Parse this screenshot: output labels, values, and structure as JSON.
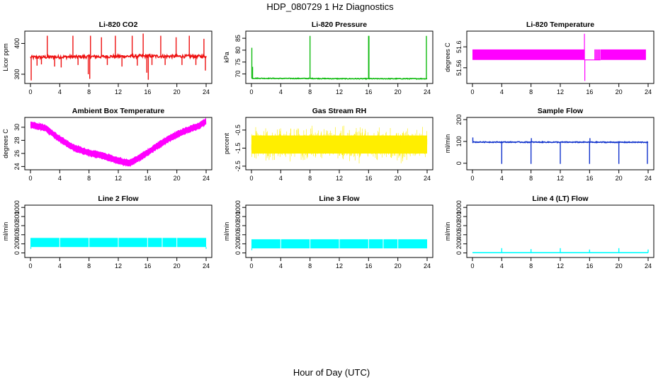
{
  "main_title": "HDP_080729  1 Hz Diagnostics",
  "x_axis_label": "Hour of Day (UTC)",
  "chart_data": [
    {
      "type": "line",
      "title": "Li-820 CO2",
      "ylabel": "Licor ppm",
      "color": "#ee1111",
      "xlim": [
        0,
        24
      ],
      "xticks": [
        0,
        4,
        8,
        12,
        16,
        20,
        24
      ],
      "ylim": [
        270,
        440
      ],
      "yticks": [
        300,
        400
      ],
      "baseline": [
        [
          0,
          355
        ],
        [
          4,
          356
        ],
        [
          8,
          357
        ],
        [
          12,
          358
        ],
        [
          16,
          359
        ],
        [
          20,
          358
        ],
        [
          24,
          358
        ]
      ],
      "noise": 5,
      "spikes": [
        {
          "x": 0.1,
          "y": 280
        },
        {
          "x": 0.9,
          "y": 328
        },
        {
          "x": 1.5,
          "y": 332
        },
        {
          "x": 2.3,
          "y": 425
        },
        {
          "x": 3.3,
          "y": 325
        },
        {
          "x": 4.2,
          "y": 322
        },
        {
          "x": 5.8,
          "y": 425
        },
        {
          "x": 6.5,
          "y": 330
        },
        {
          "x": 7.9,
          "y": 300
        },
        {
          "x": 8.2,
          "y": 425
        },
        {
          "x": 8.1,
          "y": 285
        },
        {
          "x": 9.7,
          "y": 420
        },
        {
          "x": 10.5,
          "y": 330
        },
        {
          "x": 11.6,
          "y": 425
        },
        {
          "x": 12.5,
          "y": 325
        },
        {
          "x": 13.9,
          "y": 425
        },
        {
          "x": 14.6,
          "y": 328
        },
        {
          "x": 15.4,
          "y": 432
        },
        {
          "x": 15.9,
          "y": 305
        },
        {
          "x": 16.1,
          "y": 282
        },
        {
          "x": 16.6,
          "y": 330
        },
        {
          "x": 17.8,
          "y": 425
        },
        {
          "x": 18.4,
          "y": 330
        },
        {
          "x": 19.9,
          "y": 420
        },
        {
          "x": 20.7,
          "y": 330
        },
        {
          "x": 21.7,
          "y": 425
        },
        {
          "x": 22.6,
          "y": 330
        },
        {
          "x": 23.7,
          "y": 415
        },
        {
          "x": 23.9,
          "y": 312
        }
      ]
    },
    {
      "type": "line",
      "title": "Li-820 Pressure",
      "ylabel": "kPa",
      "color": "#11bb11",
      "xlim": [
        0,
        24
      ],
      "xticks": [
        0,
        4,
        8,
        12,
        16,
        20,
        24
      ],
      "ylim": [
        66,
        88
      ],
      "yticks": [
        70,
        75,
        80,
        85
      ],
      "baseline": [
        [
          0,
          68.2
        ],
        [
          4,
          68.1
        ],
        [
          8,
          68.1
        ],
        [
          12,
          68.0
        ],
        [
          16,
          68.0
        ],
        [
          20,
          68.0
        ],
        [
          24,
          68.0
        ]
      ],
      "noise": 0.15,
      "spikes": [
        {
          "x": 0.05,
          "y": 81
        },
        {
          "x": 0.15,
          "y": 73
        },
        {
          "x": 8.0,
          "y": 86
        },
        {
          "x": 16.0,
          "y": 86
        },
        {
          "x": 16.05,
          "y": 86
        },
        {
          "x": 23.9,
          "y": 86
        }
      ]
    },
    {
      "type": "band",
      "title": "Li-820 Temperature",
      "ylabel": "degrees C",
      "color": "#ff00ff",
      "xlim": [
        0,
        24
      ],
      "xticks": [
        0,
        4,
        8,
        12,
        16,
        20,
        24
      ],
      "ylim": [
        51.53,
        51.63
      ],
      "yticks": [
        51.56,
        51.6
      ],
      "segments": [
        {
          "x0": 0,
          "x1": 15.3,
          "low": 51.575,
          "high": 51.595
        },
        {
          "x0": 17.5,
          "x1": 23.7,
          "low": 51.575,
          "high": 51.595
        }
      ],
      "sparse_segments": [
        {
          "x0": 16.7,
          "x1": 17.5,
          "low": 51.575,
          "high": 51.595
        }
      ],
      "flat": [
        {
          "x0": 15.3,
          "x1": 17.5,
          "y": 51.575
        }
      ],
      "spikes": [
        {
          "x": 15.3,
          "y": 51.625
        },
        {
          "x": 15.35,
          "y": 51.535
        }
      ]
    },
    {
      "type": "band",
      "title": "Ambient Box Temperature",
      "ylabel": "degrees C",
      "color": "#ff00ff",
      "xlim": [
        0,
        24
      ],
      "xticks": [
        0,
        4,
        8,
        12,
        16,
        20,
        24
      ],
      "ylim": [
        23.5,
        31.5
      ],
      "yticks": [
        24,
        26,
        28,
        30
      ],
      "center": [
        [
          0,
          30.4
        ],
        [
          2,
          29.9
        ],
        [
          4,
          28.2
        ],
        [
          6,
          26.8
        ],
        [
          8,
          26.1
        ],
        [
          10,
          25.6
        ],
        [
          12,
          24.9
        ],
        [
          13.5,
          24.5
        ],
        [
          15,
          25.4
        ],
        [
          17,
          26.9
        ],
        [
          19,
          28.3
        ],
        [
          21,
          29.4
        ],
        [
          23,
          30.2
        ],
        [
          24,
          30.9
        ]
      ],
      "half_width": 0.5
    },
    {
      "type": "noise",
      "title": "Gas Stream RH",
      "ylabel": "percent",
      "color": "#ffee00",
      "xlim": [
        0,
        24
      ],
      "xticks": [
        0,
        4,
        8,
        12,
        16,
        20,
        24
      ],
      "ylim": [
        -2.7,
        0.2
      ],
      "yticks": [
        -2.5,
        -1.5,
        -0.5
      ],
      "center": -1.3,
      "core": 0.5,
      "spread": 1.2
    },
    {
      "type": "line",
      "title": "Sample Flow",
      "ylabel": "ml/min",
      "color": "#1133cc",
      "xlim": [
        0,
        24
      ],
      "xticks": [
        0,
        4,
        8,
        12,
        16,
        20,
        24
      ],
      "ylim": [
        -30,
        210
      ],
      "yticks": [
        0,
        100,
        200
      ],
      "baseline": [
        [
          0,
          97
        ],
        [
          24,
          96
        ]
      ],
      "noise": 2,
      "spikes": [
        {
          "x": 0.05,
          "y": 118
        },
        {
          "x": 4.0,
          "y": -3
        },
        {
          "x": 8.0,
          "y": -3
        },
        {
          "x": 8.05,
          "y": 115
        },
        {
          "x": 12.0,
          "y": -3
        },
        {
          "x": 16.0,
          "y": -3
        },
        {
          "x": 16.05,
          "y": 115
        },
        {
          "x": 20.0,
          "y": -3
        },
        {
          "x": 23.9,
          "y": -3
        }
      ]
    },
    {
      "type": "band",
      "title": "Line 2 Flow",
      "ylabel": "ml/min",
      "color": "#00ffff",
      "xlim": [
        0,
        24
      ],
      "xticks": [
        0,
        4,
        8,
        12,
        16,
        20,
        24
      ],
      "ylim": [
        -100,
        1050
      ],
      "yticks": [
        0,
        200,
        400,
        600,
        800,
        1000
      ],
      "segments": [
        {
          "x0": 0,
          "x1": 24,
          "low": 130,
          "high": 330
        }
      ],
      "gaps": [
        4.0,
        8.0,
        12.0,
        16.0,
        18.0,
        20.0
      ],
      "spikes": [
        {
          "x": 0.05,
          "y": 90
        },
        {
          "x": 24,
          "y": 90
        }
      ]
    },
    {
      "type": "band",
      "title": "Line 3 Flow",
      "ylabel": "ml/min",
      "color": "#00ffff",
      "xlim": [
        0,
        24
      ],
      "xticks": [
        0,
        4,
        8,
        12,
        16,
        20,
        24
      ],
      "ylim": [
        -100,
        1050
      ],
      "yticks": [
        0,
        200,
        400,
        600,
        800,
        1000
      ],
      "segments": [
        {
          "x0": 0,
          "x1": 24,
          "low": 100,
          "high": 300
        }
      ],
      "gaps": [
        4.0,
        8.0,
        12.0,
        16.0,
        18.0,
        20.0
      ],
      "spikes": [
        {
          "x": 0.05,
          "y": 60
        }
      ]
    },
    {
      "type": "line",
      "title": "Line 4 (LT) Flow",
      "ylabel": "ml/min",
      "color": "#00ffff",
      "xlim": [
        0,
        24
      ],
      "xticks": [
        0,
        4,
        8,
        12,
        16,
        20,
        24
      ],
      "ylim": [
        -100,
        1050
      ],
      "yticks": [
        0,
        200,
        400,
        600,
        800,
        1000
      ],
      "baseline": [
        [
          0,
          5
        ],
        [
          24,
          5
        ]
      ],
      "noise": 0,
      "spikes": [
        {
          "x": 4.0,
          "y": 105
        },
        {
          "x": 8.0,
          "y": 85
        },
        {
          "x": 12.0,
          "y": 105
        },
        {
          "x": 16.0,
          "y": 75
        },
        {
          "x": 20.0,
          "y": 105
        },
        {
          "x": 24.0,
          "y": 75
        }
      ]
    }
  ]
}
